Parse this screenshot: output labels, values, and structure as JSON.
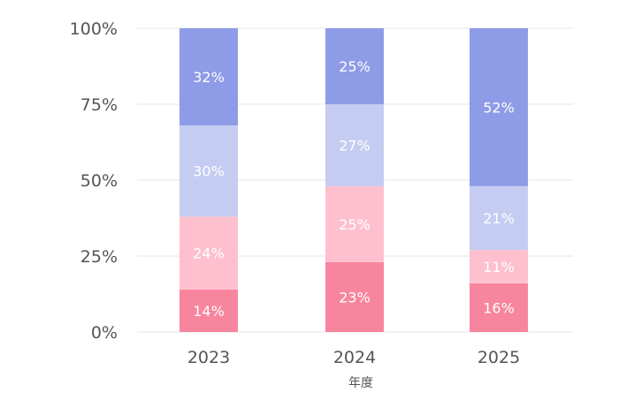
{
  "chart_data": {
    "type": "bar",
    "stacked": true,
    "normalized": true,
    "categories": [
      "2023",
      "2024",
      "2025"
    ],
    "series": [
      {
        "values": [
          14,
          23,
          16
        ],
        "color": "#f7859e"
      },
      {
        "values": [
          24,
          25,
          11
        ],
        "color": "#fec0cf"
      },
      {
        "values": [
          30,
          27,
          21
        ],
        "color": "#c5ccf1"
      },
      {
        "values": [
          32,
          25,
          52
        ],
        "color": "#8e9be7"
      }
    ],
    "data_labels": [
      [
        "14%",
        "23%",
        "16%"
      ],
      [
        "24%",
        "25%",
        "11%"
      ],
      [
        "30%",
        "27%",
        "21%"
      ],
      [
        "32%",
        "25%",
        "52%"
      ]
    ],
    "xlabel": "年度",
    "ylabel": "",
    "ylim": [
      0,
      100
    ],
    "yticks": [
      0,
      25,
      50,
      75,
      100
    ],
    "ytick_labels": [
      "0%",
      "25%",
      "50%",
      "75%",
      "100%"
    ],
    "grid": true,
    "legend": "none"
  }
}
